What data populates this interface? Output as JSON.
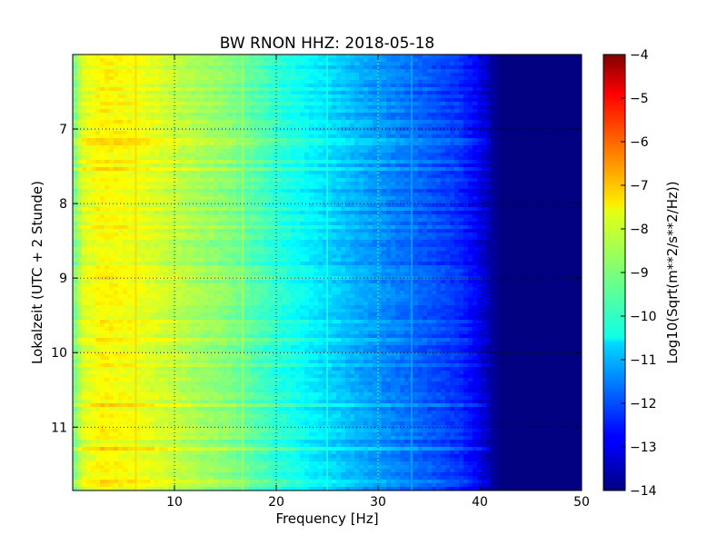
{
  "chart_data": {
    "type": "heatmap",
    "title": "BW RNON HHZ: 2018-05-18",
    "xlabel": "Frequency [Hz]",
    "ylabel": "Lokalzeit (UTC + 2 Stunde)",
    "xlim": [
      0,
      50
    ],
    "ylim": [
      11.85,
      6.0
    ],
    "x_ticks": [
      10,
      20,
      30,
      40,
      50
    ],
    "x_tick_labels": [
      "10",
      "20",
      "30",
      "40",
      "50"
    ],
    "y_ticks": [
      7,
      8,
      9,
      10,
      11
    ],
    "y_tick_labels": [
      "7",
      "8",
      "9",
      "10",
      "11"
    ],
    "grid": true,
    "colormap": "jet",
    "colorbar": {
      "label": "Log10(Sqrt(m**2/s**2/Hz))",
      "range": [
        -14,
        -4
      ],
      "ticks": [
        -4,
        -5,
        -6,
        -7,
        -8,
        -9,
        -10,
        -11,
        -12,
        -13,
        -14
      ],
      "tick_labels": [
        "−4",
        "−5",
        "−6",
        "−7",
        "−8",
        "−9",
        "−10",
        "−11",
        "−12",
        "−13",
        "−14"
      ]
    },
    "spectrum_profile": {
      "frequency_hz": [
        0,
        1,
        3,
        5,
        8,
        12,
        15,
        20,
        25,
        30,
        35,
        38,
        40,
        41,
        42,
        50
      ],
      "log10_amplitude": [
        -9.2,
        -8.1,
        -7.7,
        -7.8,
        -8.1,
        -8.6,
        -8.9,
        -9.8,
        -10.6,
        -11.3,
        -11.9,
        -12.3,
        -12.9,
        -13.6,
        -14,
        -14
      ]
    },
    "spectral_lines_hz": [
      6.2,
      16.7,
      25,
      30,
      33.3
    ],
    "colors": {
      "background": "#ffffff",
      "axes": "#000000"
    }
  }
}
